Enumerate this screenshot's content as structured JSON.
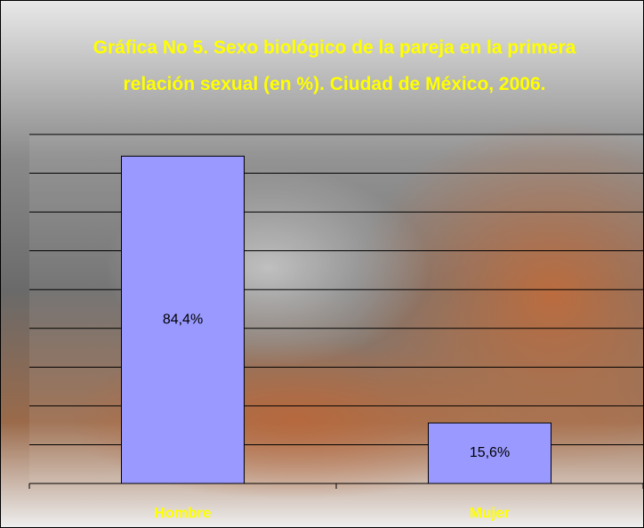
{
  "chart_data": {
    "type": "bar",
    "title": "Gráfica No 5. Sexo biológico de la pareja en la primera relación sexual (en %). Ciudad de México, 2006.",
    "categories": [
      "Hombre",
      "Mujer"
    ],
    "values": [
      84.4,
      15.6
    ],
    "value_labels": [
      "84,4%",
      "15,6%"
    ],
    "color": "#9999ff",
    "ylim": [
      0,
      90
    ],
    "yticks": [
      0,
      10,
      20,
      30,
      40,
      50,
      60,
      70,
      80,
      90
    ],
    "grid": true
  }
}
